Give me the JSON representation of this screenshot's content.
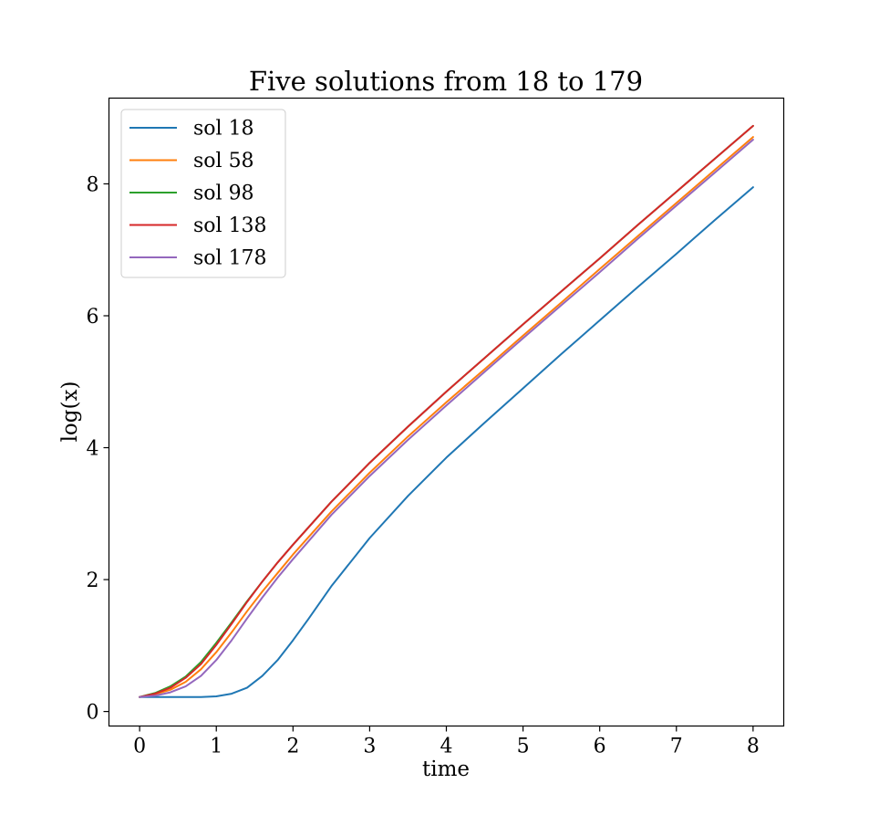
{
  "chart_data": {
    "type": "line",
    "title": "Five solutions from 18 to 179",
    "xlabel": "time",
    "ylabel": "log(x)",
    "xlim": [
      -0.4,
      8.4
    ],
    "ylim": [
      -0.22,
      9.3
    ],
    "xticks": [
      0,
      1,
      2,
      3,
      4,
      5,
      6,
      7,
      8
    ],
    "yticks": [
      0,
      2,
      4,
      6,
      8
    ],
    "xtick_labels": [
      "0",
      "1",
      "2",
      "3",
      "4",
      "5",
      "6",
      "7",
      "8"
    ],
    "ytick_labels": [
      "0",
      "2",
      "4",
      "6",
      "8"
    ],
    "grid": false,
    "legend_position": "top-left",
    "series": [
      {
        "name": "sol 18",
        "color": "#1f77b4",
        "x": [
          0,
          0.5,
          0.8,
          1.0,
          1.2,
          1.4,
          1.6,
          1.8,
          2.0,
          2.2,
          2.5,
          3.0,
          3.5,
          4.0,
          4.5,
          5.0,
          5.5,
          6.0,
          6.5,
          7.0,
          7.5,
          8.0
        ],
        "y": [
          0.22,
          0.22,
          0.22,
          0.23,
          0.27,
          0.36,
          0.54,
          0.78,
          1.08,
          1.4,
          1.9,
          2.63,
          3.27,
          3.85,
          4.38,
          4.9,
          5.42,
          5.93,
          6.44,
          6.94,
          7.45,
          7.95
        ]
      },
      {
        "name": "sol 58",
        "color": "#ff7f0e",
        "x": [
          0,
          0.2,
          0.4,
          0.6,
          0.8,
          1.0,
          1.2,
          1.4,
          1.6,
          1.8,
          2.0,
          2.5,
          3.0,
          3.5,
          4.0,
          4.5,
          5.0,
          5.5,
          6.0,
          6.5,
          7.0,
          7.5,
          8.0
        ],
        "y": [
          0.22,
          0.26,
          0.33,
          0.45,
          0.64,
          0.9,
          1.2,
          1.52,
          1.82,
          2.1,
          2.38,
          3.03,
          3.62,
          4.17,
          4.69,
          5.19,
          5.7,
          6.2,
          6.71,
          7.21,
          7.71,
          8.21,
          8.71
        ]
      },
      {
        "name": "sol 98",
        "color": "#2ca02c",
        "x": [
          0,
          0.2,
          0.4,
          0.6,
          0.8,
          1.0,
          1.2,
          1.4,
          1.6,
          1.8,
          2.0,
          2.5,
          3.0,
          3.5,
          4.0,
          4.5,
          5.0,
          5.5,
          6.0,
          6.5,
          7.0,
          7.5,
          8.0
        ],
        "y": [
          0.22,
          0.28,
          0.38,
          0.53,
          0.75,
          1.04,
          1.35,
          1.67,
          1.97,
          2.26,
          2.53,
          3.18,
          3.77,
          4.32,
          4.85,
          5.36,
          5.87,
          6.37,
          6.87,
          7.38,
          7.88,
          8.38,
          8.88
        ]
      },
      {
        "name": "sol 138",
        "color": "#d62728",
        "x": [
          0,
          0.2,
          0.4,
          0.6,
          0.8,
          1.0,
          1.2,
          1.4,
          1.6,
          1.8,
          2.0,
          2.5,
          3.0,
          3.5,
          4.0,
          4.5,
          5.0,
          5.5,
          6.0,
          6.5,
          7.0,
          7.5,
          8.0
        ],
        "y": [
          0.22,
          0.27,
          0.36,
          0.51,
          0.72,
          1.01,
          1.33,
          1.66,
          1.97,
          2.26,
          2.53,
          3.18,
          3.77,
          4.32,
          4.85,
          5.36,
          5.87,
          6.37,
          6.87,
          7.38,
          7.88,
          8.38,
          8.88
        ]
      },
      {
        "name": "sol 178",
        "color": "#9467bd",
        "x": [
          0,
          0.2,
          0.4,
          0.6,
          0.8,
          1.0,
          1.2,
          1.4,
          1.6,
          1.8,
          2.0,
          2.5,
          3.0,
          3.5,
          4.0,
          4.5,
          5.0,
          5.5,
          6.0,
          6.5,
          7.0,
          7.5,
          8.0
        ],
        "y": [
          0.22,
          0.24,
          0.29,
          0.38,
          0.54,
          0.78,
          1.08,
          1.41,
          1.73,
          2.03,
          2.31,
          2.98,
          3.57,
          4.12,
          4.64,
          5.15,
          5.66,
          6.16,
          6.66,
          7.17,
          7.67,
          8.17,
          8.67
        ]
      }
    ]
  }
}
